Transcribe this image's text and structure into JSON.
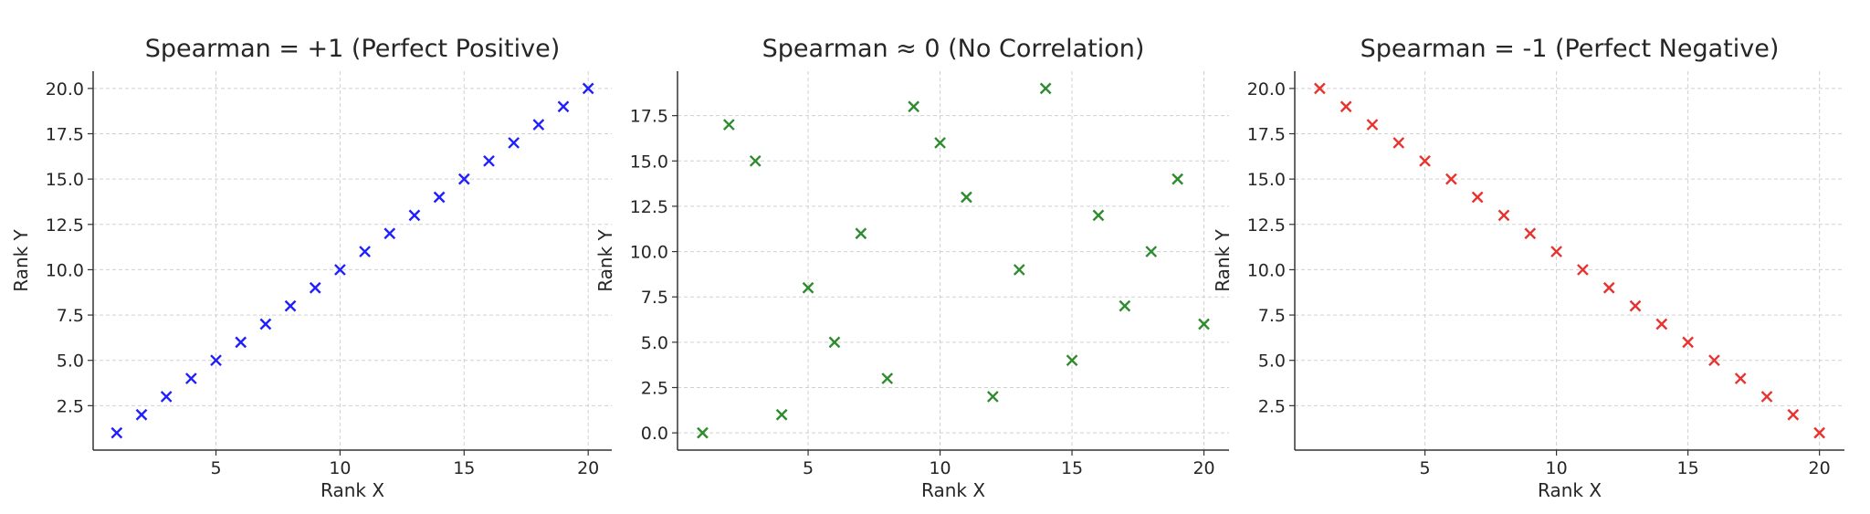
{
  "chart_data": [
    {
      "type": "scatter",
      "title": "Spearman = +1 (Perfect Positive)",
      "xlabel": "Rank X",
      "ylabel": "Rank Y",
      "color": "#1f1fff",
      "marker": "x",
      "x": [
        1,
        2,
        3,
        4,
        5,
        6,
        7,
        8,
        9,
        10,
        11,
        12,
        13,
        14,
        15,
        16,
        17,
        18,
        19,
        20
      ],
      "y": [
        1,
        2,
        3,
        4,
        5,
        6,
        7,
        8,
        9,
        10,
        11,
        12,
        13,
        14,
        15,
        16,
        17,
        18,
        19,
        20
      ],
      "xlim": [
        0.05,
        20.95
      ],
      "ylim": [
        0.05,
        20.95
      ],
      "xticks": [
        "5",
        "10",
        "15",
        "20"
      ],
      "xtick_values": [
        5,
        10,
        15,
        20
      ],
      "yticks": [
        "2.5",
        "5.0",
        "7.5",
        "10.0",
        "12.5",
        "15.0",
        "17.5",
        "20.0"
      ],
      "ytick_values": [
        2.5,
        5,
        7.5,
        10,
        12.5,
        15,
        17.5,
        20
      ],
      "grid": true
    },
    {
      "type": "scatter",
      "title": "Spearman ≈ 0 (No Correlation)",
      "xlabel": "Rank X",
      "ylabel": "Rank Y",
      "color": "#2e8b2e",
      "marker": "x",
      "x": [
        1,
        2,
        3,
        4,
        5,
        6,
        7,
        8,
        9,
        10,
        11,
        12,
        13,
        14,
        15,
        16,
        17,
        18,
        19,
        20
      ],
      "y": [
        0,
        17,
        15,
        1,
        8,
        5,
        11,
        3,
        18,
        16,
        13,
        2,
        9,
        19,
        4,
        12,
        7,
        10,
        14,
        6
      ],
      "xlim": [
        0.05,
        20.95
      ],
      "ylim": [
        -0.95,
        19.95
      ],
      "xticks": [
        "5",
        "10",
        "15",
        "20"
      ],
      "xtick_values": [
        5,
        10,
        15,
        20
      ],
      "yticks": [
        "0.0",
        "2.5",
        "5.0",
        "7.5",
        "10.0",
        "12.5",
        "15.0",
        "17.5"
      ],
      "ytick_values": [
        0,
        2.5,
        5,
        7.5,
        10,
        12.5,
        15,
        17.5
      ],
      "grid": true
    },
    {
      "type": "scatter",
      "title": "Spearman = -1 (Perfect Negative)",
      "xlabel": "Rank X",
      "ylabel": "Rank Y",
      "color": "#e8322e",
      "marker": "x",
      "x": [
        1,
        2,
        3,
        4,
        5,
        6,
        7,
        8,
        9,
        10,
        11,
        12,
        13,
        14,
        15,
        16,
        17,
        18,
        19,
        20
      ],
      "y": [
        20,
        19,
        18,
        17,
        16,
        15,
        14,
        13,
        12,
        11,
        10,
        9,
        8,
        7,
        6,
        5,
        4,
        3,
        2,
        1
      ],
      "xlim": [
        0.05,
        20.95
      ],
      "ylim": [
        0.05,
        20.95
      ],
      "xticks": [
        "5",
        "10",
        "15",
        "20"
      ],
      "xtick_values": [
        5,
        10,
        15,
        20
      ],
      "yticks": [
        "2.5",
        "5.0",
        "7.5",
        "10.0",
        "12.5",
        "15.0",
        "17.5",
        "20.0"
      ],
      "ytick_values": [
        2.5,
        5,
        7.5,
        10,
        12.5,
        15,
        17.5,
        20
      ],
      "grid": true
    }
  ]
}
